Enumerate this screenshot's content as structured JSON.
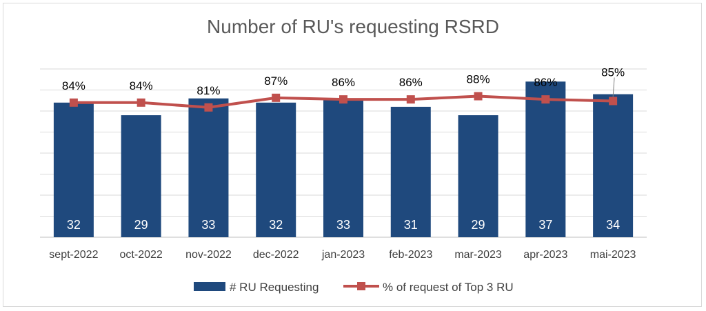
{
  "chart_data": {
    "type": "bar",
    "title": "Number of RU's requesting RSRD",
    "categories": [
      "sept-2022",
      "oct-2022",
      "nov-2022",
      "dec-2022",
      "jan-2023",
      "feb-2023",
      "mar-2023",
      "apr-2023",
      "mai-2023"
    ],
    "series": [
      {
        "name": "# RU Requesting",
        "type": "bar",
        "axis": "primary",
        "color": "#1f497d",
        "values": [
          32,
          29,
          33,
          32,
          33,
          31,
          29,
          37,
          34
        ],
        "labels": [
          "32",
          "29",
          "33",
          "32",
          "33",
          "31",
          "29",
          "37",
          "34"
        ]
      },
      {
        "name": "% of request of Top 3 RU",
        "type": "line",
        "axis": "secondary",
        "color": "#c0504d",
        "values": [
          0.84,
          0.84,
          0.81,
          0.87,
          0.86,
          0.86,
          0.88,
          0.86,
          0.85
        ],
        "labels": [
          "84%",
          "84%",
          "81%",
          "87%",
          "86%",
          "86%",
          "88%",
          "86%",
          "85%"
        ]
      }
    ],
    "ylim": [
      0,
      40
    ],
    "y2lim": [
      0,
      1.05
    ],
    "grid": true,
    "legend": "bottom"
  }
}
